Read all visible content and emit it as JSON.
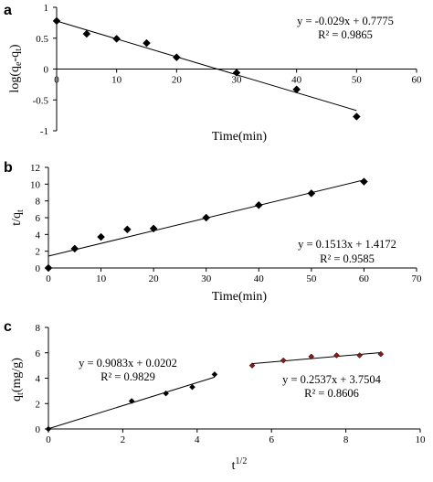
{
  "chart_data": [
    {
      "type": "scatter",
      "panel_label": "a",
      "ylabel": "log(qe-qt)",
      "xlabel": "Time(min)",
      "xlim": [
        0,
        60
      ],
      "ylim": [
        -1,
        1
      ],
      "xticks": [
        "0",
        "10",
        "20",
        "30",
        "40",
        "50",
        "60"
      ],
      "yticks": [
        "1",
        "0.5",
        "0",
        "-0.5",
        "-1"
      ],
      "x": [
        0,
        5,
        10,
        15,
        20,
        30,
        40,
        50
      ],
      "y": [
        0.78,
        0.57,
        0.49,
        0.42,
        0.19,
        -0.06,
        -0.33,
        -0.77
      ],
      "trendline": {
        "slope": -0.029,
        "intercept": 0.7775,
        "x_range": [
          0,
          50
        ]
      },
      "equation": "y = -0.029x + 0.7775",
      "r2": "R² = 0.9865"
    },
    {
      "type": "scatter",
      "panel_label": "b",
      "ylabel": "t/qt",
      "xlabel": "Time(min)",
      "xlim": [
        0,
        70
      ],
      "ylim": [
        0,
        12
      ],
      "xticks": [
        "0",
        "10",
        "20",
        "30",
        "40",
        "50",
        "60",
        "70"
      ],
      "yticks": [
        "12",
        "10",
        "8",
        "6",
        "4",
        "2",
        "0"
      ],
      "x": [
        0,
        5,
        10,
        15,
        20,
        30,
        40,
        50,
        60
      ],
      "y": [
        0,
        2.3,
        3.7,
        4.6,
        4.7,
        6.0,
        7.5,
        8.9,
        10.3
      ],
      "trendline": {
        "slope": 0.1513,
        "intercept": 1.4172,
        "x_range": [
          0,
          60
        ]
      },
      "equation": "y = 0.1513x + 1.4172",
      "r2": "R² = 0.9585"
    },
    {
      "type": "scatter",
      "panel_label": "c",
      "ylabel": "qt(mg/g)",
      "xlabel": "t1/2",
      "xlim": [
        0,
        10
      ],
      "ylim": [
        0,
        8
      ],
      "xticks": [
        "0",
        "2",
        "4",
        "6",
        "8",
        "10"
      ],
      "yticks": [
        "8",
        "6",
        "4",
        "2",
        "0"
      ],
      "series": [
        {
          "x": [
            0,
            2.24,
            3.16,
            3.87,
            4.47
          ],
          "y": [
            0,
            2.2,
            2.8,
            3.3,
            4.3
          ],
          "color": "#000000",
          "trendline": {
            "slope": 0.9083,
            "intercept": 0.0202,
            "x_range": [
              0,
              4.47
            ]
          },
          "equation": "y = 0.9083x + 0.0202",
          "r2": "R² = 0.9829"
        },
        {
          "x": [
            5.48,
            6.32,
            7.07,
            7.75,
            8.37,
            8.94
          ],
          "y": [
            5.0,
            5.4,
            5.7,
            5.8,
            5.8,
            5.9
          ],
          "color": "#8b1a1a",
          "trendline": {
            "slope": 0.2537,
            "intercept": 3.7504,
            "x_range": [
              5.48,
              8.94
            ]
          },
          "equation": "y = 0.2537x + 3.7504",
          "r2": "R² = 0.8606"
        }
      ]
    }
  ]
}
